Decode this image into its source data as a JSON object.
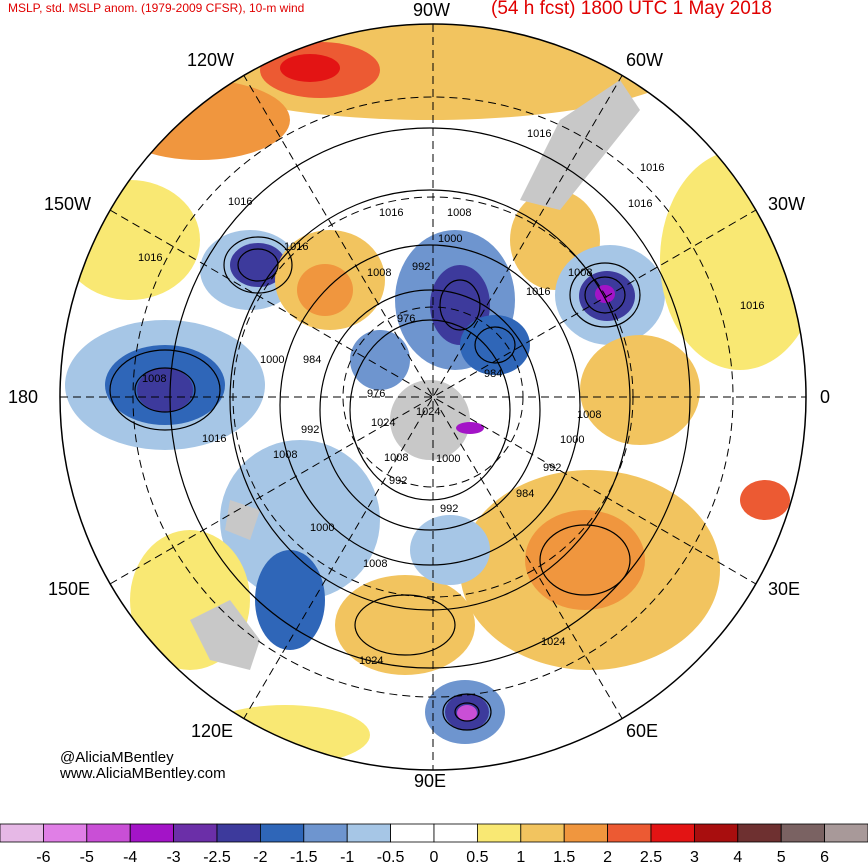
{
  "header": {
    "left": "MSLP, std. MSLP anom. (1979-2009 CFSR), 10-m wind",
    "right": "(54 h fcst) 1800 UTC 1 May 2018"
  },
  "longitude_labels": {
    "w90": "90W",
    "w60": "60W",
    "w30": "30W",
    "e0": "0",
    "e30": "30E",
    "e60": "60E",
    "e90": "90E",
    "e120": "120E",
    "e150": "150E",
    "d180": "180",
    "w150": "150W",
    "w120": "120W"
  },
  "credits": {
    "handle": "@AliciaMBentley",
    "site": "www.AliciaMBentley.com"
  },
  "isobar_labels": [
    "1016",
    "1016",
    "1016",
    "1016",
    "1016",
    "1016",
    "1016",
    "1016",
    "1016",
    "1016",
    "1008",
    "1008",
    "1008",
    "1008",
    "1008",
    "1008",
    "1008",
    "1008",
    "1000",
    "1000",
    "1000",
    "1000",
    "1000",
    "992",
    "992",
    "992",
    "992",
    "992",
    "984",
    "984",
    "984",
    "976",
    "976",
    "1024",
    "1024",
    "1024",
    "1024"
  ],
  "colorbar": {
    "ticks": [
      "-6",
      "-5",
      "-4",
      "-3",
      "-2.5",
      "-2",
      "-1.5",
      "-1",
      "-0.5",
      "0",
      "0.5",
      "1",
      "1.5",
      "2",
      "2.5",
      "3",
      "4",
      "5",
      "6"
    ],
    "colors": [
      "#e6b8e6",
      "#e07fe6",
      "#c94fd6",
      "#a314c7",
      "#6b2fa8",
      "#3d3a9c",
      "#2f66b8",
      "#6e95cf",
      "#a6c6e6",
      "#ffffff",
      "#ffffff",
      "#f9e873",
      "#f2c45f",
      "#f0963e",
      "#ec5a33",
      "#e31414",
      "#a80e0e",
      "#6e3030",
      "#7a6262",
      "#a89999"
    ]
  },
  "colors": {
    "title": "#e00000",
    "land": "#c8c8c8",
    "contour": "#000000"
  }
}
